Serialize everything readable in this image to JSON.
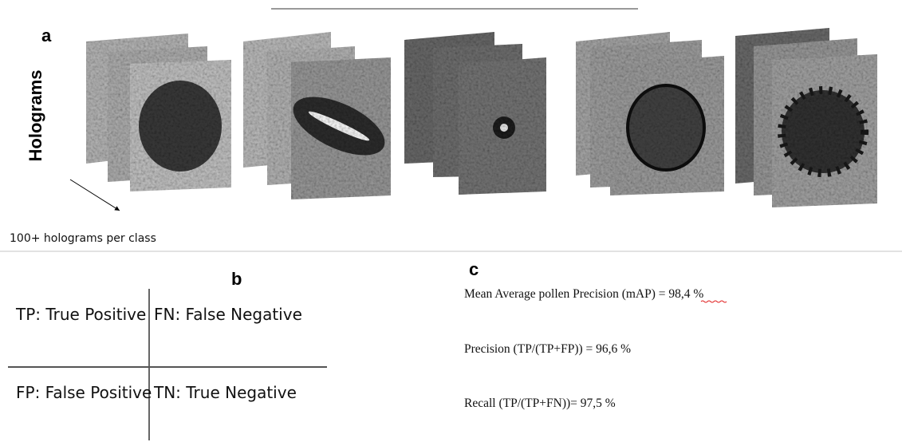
{
  "panel_a": {
    "label": "a",
    "axis_label": "Holograms",
    "caption": "100+ holograms per class"
  },
  "panel_b": {
    "label": "b",
    "cells": [
      [
        "TP: True Positive",
        "FN: False Negative"
      ],
      [
        "FP: False Positive",
        "TN: True Negative"
      ]
    ]
  },
  "panel_c": {
    "label": "c",
    "metrics": [
      "Mean Average pollen Precision (mAP) = 98,4 %",
      "Precision (TP/(TP+FP)) = 96,6 %",
      "Recall (TP/(TP+FN))= 97,5 %"
    ]
  }
}
